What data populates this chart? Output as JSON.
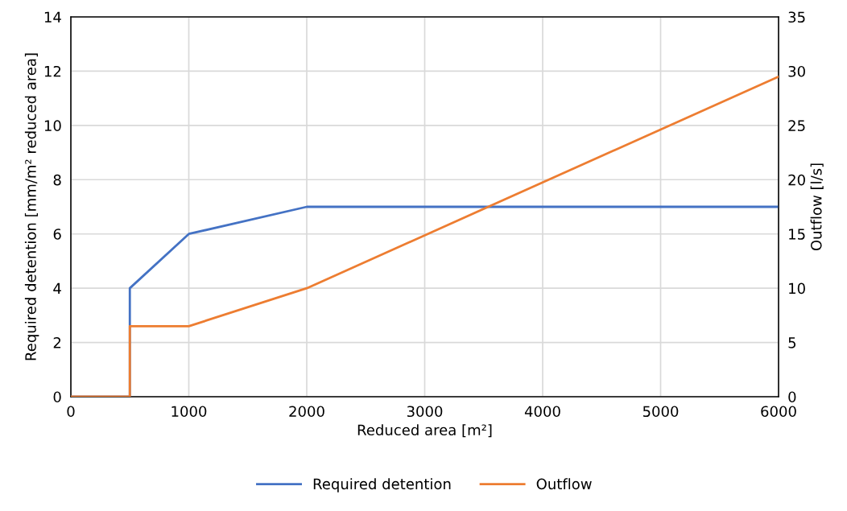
{
  "chart_data": {
    "type": "line",
    "xlabel": "Reduced area [m²]",
    "ylabel": "Required detention [mm/m² reduced area]",
    "y2label": "Outflow [l/s]",
    "series": [
      {
        "name": "Required detention",
        "color": "#4472c4",
        "x": [
          0,
          500,
          500,
          1000,
          2000,
          6000
        ],
        "values": [
          0,
          0,
          4,
          6,
          7,
          7
        ]
      },
      {
        "name": "Outflow",
        "color": "#ed7d31",
        "axis": "y2",
        "x": [
          0,
          500,
          500,
          1000,
          2000,
          6000
        ],
        "values": [
          0,
          0,
          6.5,
          6.5,
          10,
          29.5
        ]
      }
    ],
    "xlim": [
      0,
      6000
    ],
    "xticks": [
      0,
      1000,
      2000,
      3000,
      4000,
      5000,
      6000
    ],
    "ylim": [
      0,
      14
    ],
    "yticks": [
      0,
      2,
      4,
      6,
      8,
      10,
      12,
      14
    ],
    "y2lim": [
      0,
      35
    ],
    "y2ticks": [
      0,
      5,
      10,
      15,
      20,
      25,
      30,
      35
    ],
    "grid": true,
    "legend": "bottom",
    "marker": "none",
    "line_style": "solid"
  }
}
